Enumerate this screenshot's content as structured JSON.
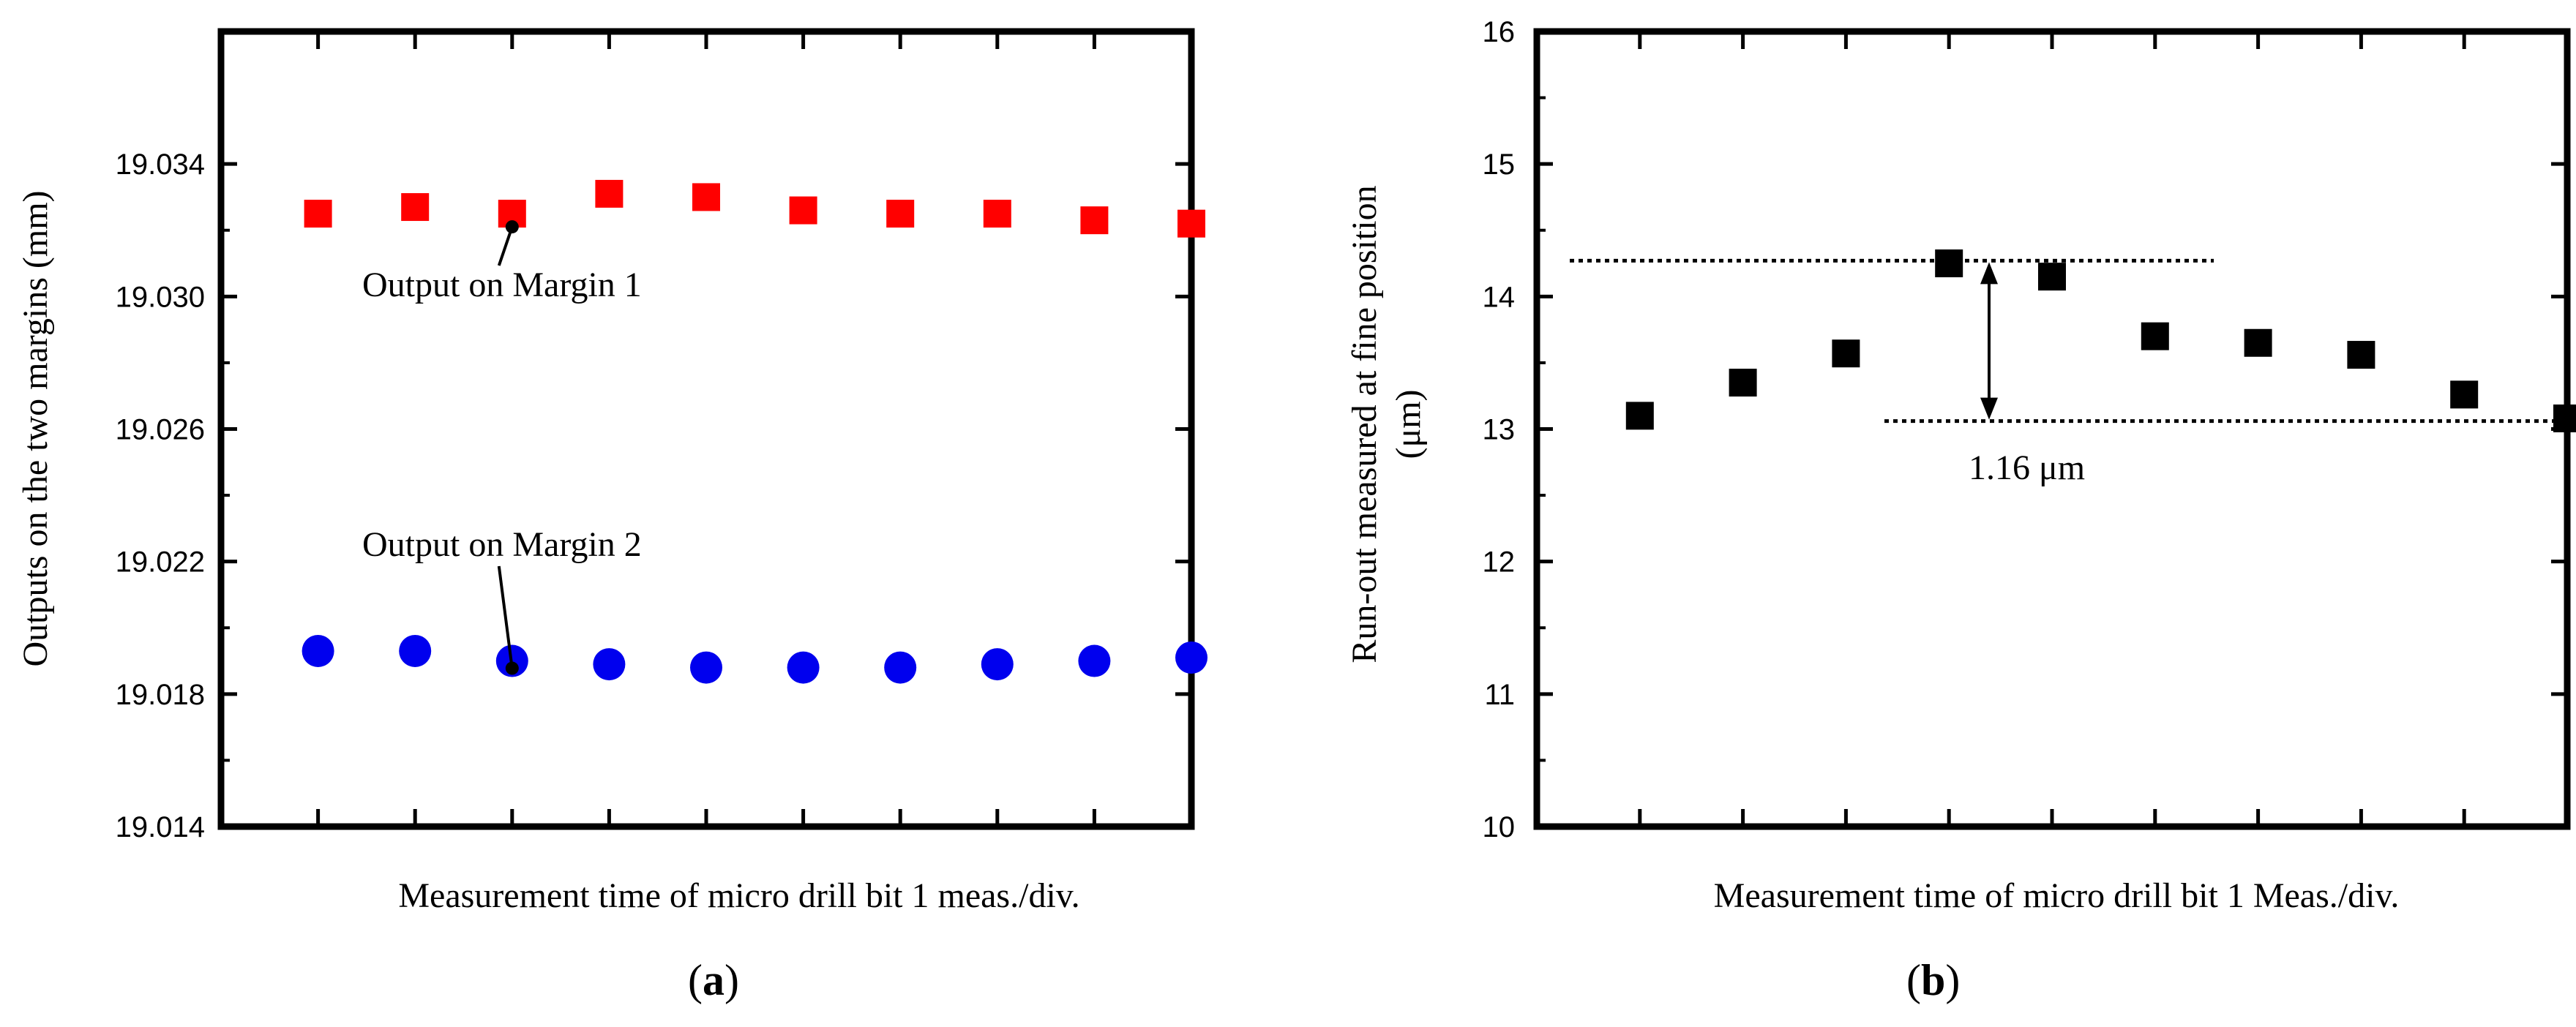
{
  "chart_data": [
    {
      "type": "scatter",
      "panel_label": "a",
      "xlabel": "Measurement time of micro drill bit 1 meas./div.",
      "ylabel": "Outputs on the two margins (mm)",
      "ylim": [
        19.014,
        19.038
      ],
      "yticks": [
        "19.014",
        "19.018",
        "19.022",
        "19.026",
        "19.030",
        "19.034"
      ],
      "ytick_values": [
        19.014,
        19.018,
        19.022,
        19.026,
        19.03,
        19.034
      ],
      "x": [
        1,
        2,
        3,
        4,
        5,
        6,
        7,
        8,
        9,
        10
      ],
      "xlim": [
        0,
        10
      ],
      "series": [
        {
          "name": "Output on Margin 1",
          "marker": "square",
          "color": "#ff0000",
          "values": [
            19.0325,
            19.0327,
            19.0325,
            19.0331,
            19.033,
            19.0326,
            19.0325,
            19.0325,
            19.0323,
            19.0322
          ]
        },
        {
          "name": "Output on Margin 2",
          "marker": "circle",
          "color": "#0000ee",
          "values": [
            19.0193,
            19.0193,
            19.019,
            19.0189,
            19.0188,
            19.0188,
            19.0188,
            19.0189,
            19.019,
            19.0191
          ]
        }
      ],
      "annotations": [
        {
          "text": "Output on Margin 1",
          "target_series": 0,
          "target_index": 2
        },
        {
          "text": "Output on Margin 2",
          "target_series": 1,
          "target_index": 2
        }
      ]
    },
    {
      "type": "scatter",
      "panel_label": "b",
      "xlabel": "Measurement time of micro drill bit 1 Meas./div.",
      "ylabel": "Run-out measured at fine position",
      "ylabel_unit": "(μm)",
      "ylim": [
        10,
        16
      ],
      "yticks": [
        "10",
        "11",
        "12",
        "13",
        "14",
        "15",
        "16"
      ],
      "ytick_values": [
        10,
        11,
        12,
        13,
        14,
        15,
        16
      ],
      "x": [
        1,
        2,
        3,
        4,
        5,
        6,
        7,
        8,
        9,
        10
      ],
      "xlim": [
        0,
        10
      ],
      "series": [
        {
          "name": "Run-out",
          "marker": "square",
          "color": "#000000",
          "values": [
            13.1,
            13.35,
            13.57,
            14.25,
            14.15,
            13.7,
            13.65,
            13.56,
            13.26,
            13.08
          ]
        }
      ],
      "reference_lines": {
        "upper": 14.27,
        "lower": 13.06
      },
      "annotation": "1.16 μm"
    }
  ]
}
